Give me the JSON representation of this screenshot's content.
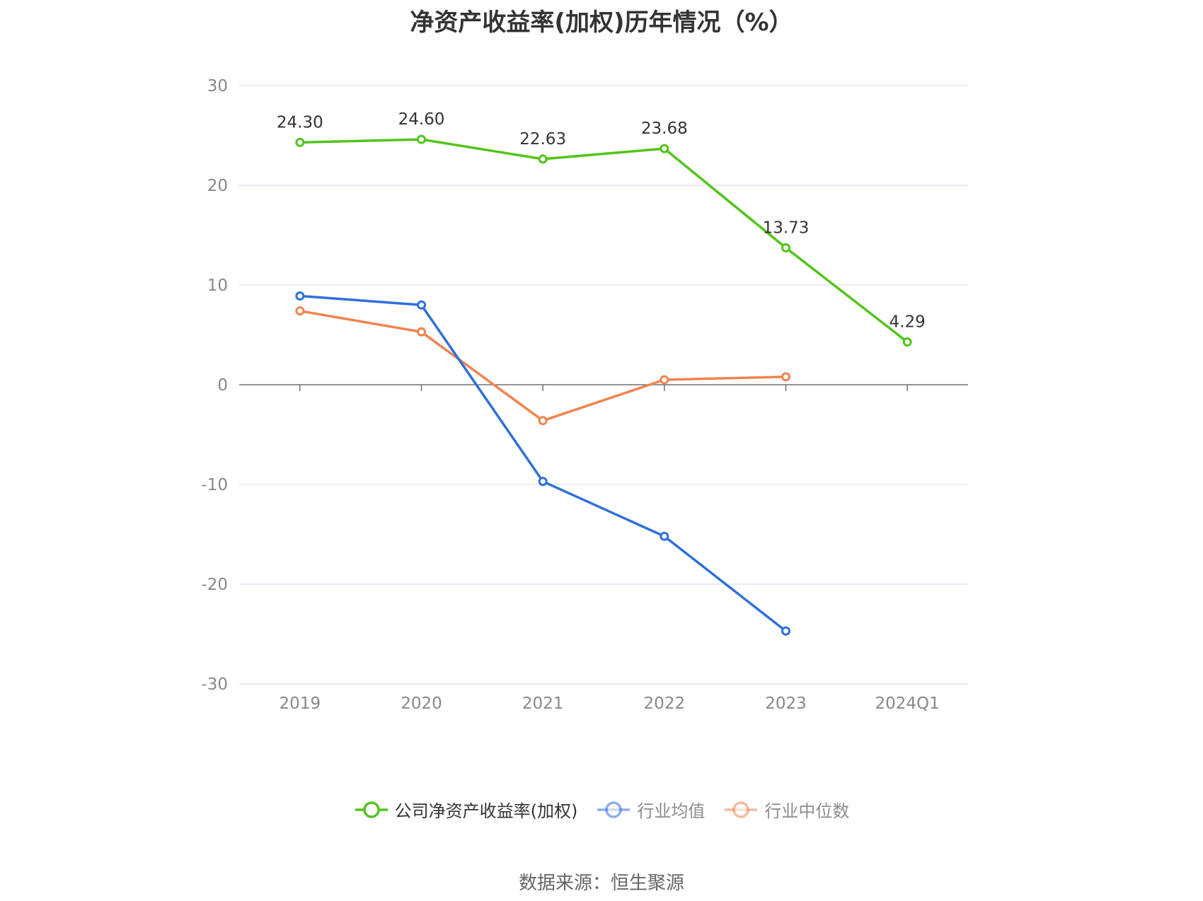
{
  "chart_data": {
    "type": "line",
    "title": "净资产收益率(加权)历年情况（%）",
    "categories": [
      "2019",
      "2020",
      "2021",
      "2022",
      "2023",
      "2024Q1"
    ],
    "ylim": [
      -30,
      30
    ],
    "yticks": [
      30,
      20,
      10,
      0,
      -10,
      -20,
      -30
    ],
    "grid": true,
    "legend_position": "bottom",
    "series": [
      {
        "name": "公司净资产收益率(加权)",
        "color": "#52c41a",
        "values": [
          24.3,
          24.6,
          22.63,
          23.68,
          13.73,
          4.29
        ],
        "labels": [
          "24.30",
          "24.60",
          "22.63",
          "23.68",
          "13.73",
          "4.29"
        ]
      },
      {
        "name": "行业均值",
        "color": "#2f6fdc",
        "values": [
          8.9,
          8.0,
          -9.7,
          -15.2,
          -24.7,
          null
        ]
      },
      {
        "name": "行业中位数",
        "color": "#f0834f",
        "values": [
          7.4,
          5.3,
          -3.6,
          0.5,
          0.8,
          null
        ]
      }
    ]
  },
  "source": "数据来源：恒生聚源"
}
